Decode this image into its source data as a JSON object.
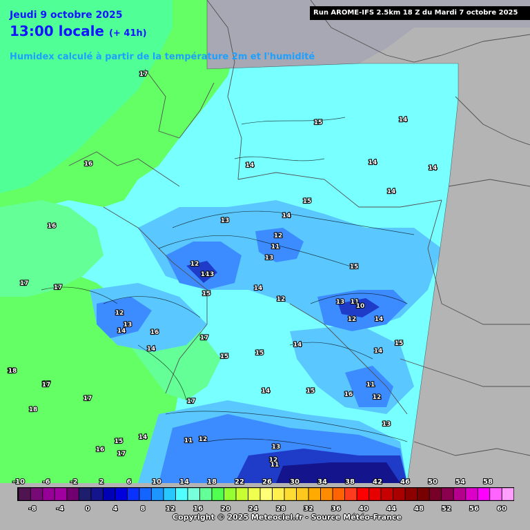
{
  "header": {
    "date": "Jeudi 9 octobre 2025",
    "time": "13:00 locale",
    "lead": "(+ 41h)",
    "parameter": "Humidex calculé à partir de la température 2m et l'humidité",
    "run": "Run AROME-IFS 2.5km 18 Z du Mardi 7 octobre 2025"
  },
  "footer": {
    "copyright": "Copyright © 2025 Meteociel.fr - Source Météo-France"
  },
  "colors": {
    "background_out": "#b4b4b4",
    "field_green": "#64ff64",
    "field_cyan": "#78ffff",
    "field_light_blue": "#5ac8ff",
    "field_blue": "#3c8cff",
    "field_dark_blue": "#1e3cc8",
    "title_blue": "#1414ff",
    "param_cyan": "#1ea0ff"
  },
  "map_labels": [
    {
      "text": "17",
      "area": "north-sea-north"
    },
    {
      "text": "16",
      "area": "north-sea"
    },
    {
      "text": "16",
      "area": "north-sea-west"
    },
    {
      "text": "17",
      "area": "west-coast"
    },
    {
      "text": "17",
      "area": "west-coast"
    },
    {
      "text": "18",
      "area": "west"
    },
    {
      "text": "17",
      "area": "west"
    },
    {
      "text": "18",
      "area": "west"
    },
    {
      "text": "17",
      "area": "west"
    },
    {
      "text": "15",
      "area": "baltic"
    },
    {
      "text": "14",
      "area": "baltic-east"
    },
    {
      "text": "14",
      "area": "north"
    },
    {
      "text": "14",
      "area": "northeast"
    },
    {
      "text": "14",
      "area": "east"
    },
    {
      "text": "14",
      "area": "east"
    },
    {
      "text": "15",
      "area": "center-north"
    },
    {
      "text": "14",
      "area": "center"
    },
    {
      "text": "13",
      "area": "center"
    },
    {
      "text": "12",
      "area": "center"
    },
    {
      "text": "11",
      "area": "center"
    },
    {
      "text": "13",
      "area": "center"
    },
    {
      "text": "12",
      "area": "center-west"
    },
    {
      "text": "14",
      "area": "center-west"
    },
    {
      "text": "13",
      "area": "center-west"
    },
    {
      "text": "15",
      "area": "center-east"
    },
    {
      "text": "14",
      "area": "center"
    },
    {
      "text": "12",
      "area": "center"
    },
    {
      "text": "15",
      "area": "center-west"
    },
    {
      "text": "12",
      "area": "west-hills"
    },
    {
      "text": "13",
      "area": "west-hills"
    },
    {
      "text": "14",
      "area": "west-hills"
    },
    {
      "text": "16",
      "area": "west-hills"
    },
    {
      "text": "17",
      "area": "west-hills"
    },
    {
      "text": "14",
      "area": "west-hills"
    },
    {
      "text": "15",
      "area": "center"
    },
    {
      "text": "15",
      "area": "center"
    },
    {
      "text": "14",
      "area": "center"
    },
    {
      "text": "13",
      "area": "east-mountains"
    },
    {
      "text": "11",
      "area": "east-mountains"
    },
    {
      "text": "10",
      "area": "east-mountains"
    },
    {
      "text": "12",
      "area": "east-mountains"
    },
    {
      "text": "14",
      "area": "east-mountains"
    },
    {
      "text": "15",
      "area": "east"
    },
    {
      "text": "14",
      "area": "east"
    },
    {
      "text": "11",
      "area": "southeast"
    },
    {
      "text": "12",
      "area": "southeast"
    },
    {
      "text": "16",
      "area": "southeast"
    },
    {
      "text": "14",
      "area": "south"
    },
    {
      "text": "15",
      "area": "south"
    },
    {
      "text": "17",
      "area": "southwest"
    },
    {
      "text": "15",
      "area": "southwest"
    },
    {
      "text": "16",
      "area": "southwest"
    },
    {
      "text": "17",
      "area": "southwest"
    },
    {
      "text": "14",
      "area": "southwest"
    },
    {
      "text": "11",
      "area": "south"
    },
    {
      "text": "12",
      "area": "south"
    },
    {
      "text": "13",
      "area": "south"
    },
    {
      "text": "13",
      "area": "southeast"
    },
    {
      "text": "12",
      "area": "south-alps"
    },
    {
      "text": "11",
      "area": "south-alps"
    },
    {
      "text": "18",
      "area": "southwest"
    },
    {
      "text": "17",
      "area": "southwest"
    }
  ],
  "legend": {
    "top_ticks": [
      "-10",
      "-6",
      "-2",
      "2",
      "6",
      "10",
      "14",
      "18",
      "22",
      "26",
      "30",
      "34",
      "38",
      "42",
      "46",
      "50",
      "54",
      "58"
    ],
    "bottom_ticks": [
      "-8",
      "-4",
      "0",
      "4",
      "8",
      "12",
      "16",
      "20",
      "24",
      "28",
      "32",
      "36",
      "40",
      "44",
      "48",
      "52",
      "56",
      "60"
    ],
    "colors": [
      "#501450",
      "#780a78",
      "#960096",
      "#a000a0",
      "#700070",
      "#1e1e6e",
      "#14148c",
      "#0000b4",
      "#0000dc",
      "#0a32ff",
      "#1464ff",
      "#1e96ff",
      "#28c8ff",
      "#50ffff",
      "#78ffdc",
      "#64ff96",
      "#50ff50",
      "#96ff32",
      "#c8ff32",
      "#f0ff50",
      "#ffff78",
      "#fff050",
      "#ffdc32",
      "#ffc81e",
      "#ffaa00",
      "#ff8c00",
      "#ff6400",
      "#ff3c1e",
      "#ff0000",
      "#e60000",
      "#c80000",
      "#aa0000",
      "#8c0000",
      "#780000",
      "#780028",
      "#8c0050",
      "#b4008c",
      "#dc00c8",
      "#ff00ff",
      "#ff64ff",
      "#ffa0ff"
    ]
  }
}
